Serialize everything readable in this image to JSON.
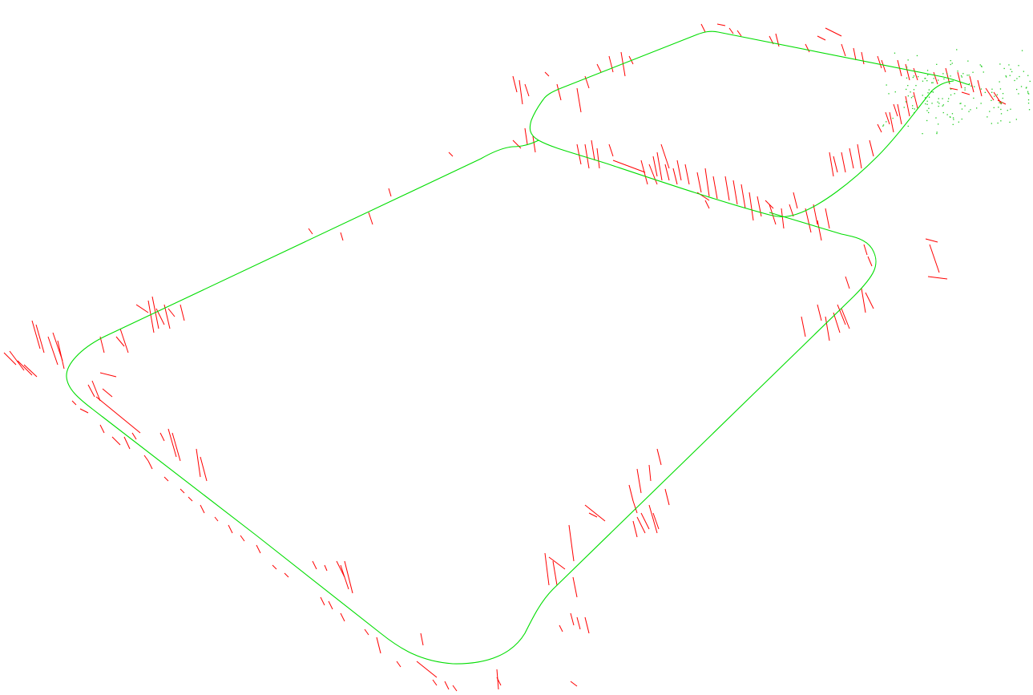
{
  "scene": {
    "background_color": "#ffffff",
    "trajectory_color": "#00dd00",
    "landmark_color": "#ff0000",
    "cluster_point_color": "#22cc22"
  }
}
